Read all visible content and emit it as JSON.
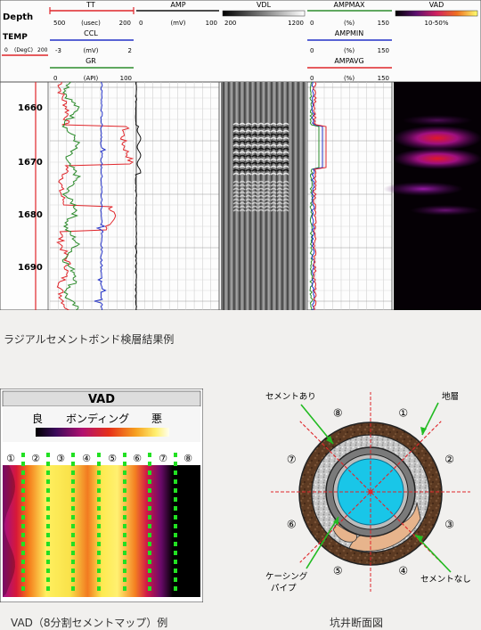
{
  "log": {
    "depth_label": "Depth",
    "temp_label": "TEMP",
    "temp_scale": [
      "0",
      "(DegC)",
      "200"
    ],
    "tt": {
      "label": "TT",
      "scale": [
        "500",
        "(usec)",
        "200"
      ]
    },
    "ccl": {
      "label": "CCL",
      "scale": [
        "-3",
        "(mV)",
        "2"
      ]
    },
    "gr": {
      "label": "GR",
      "scale": [
        "0",
        "(API)",
        "100"
      ]
    },
    "amp": {
      "label": "AMP",
      "scale": [
        "0",
        "(mV)",
        "100"
      ]
    },
    "vdl": {
      "label": "VDL",
      "scale": [
        "200",
        "1200"
      ]
    },
    "ampmax": {
      "label": "AMPMAX",
      "scale": [
        "0",
        "(%)",
        "150"
      ]
    },
    "ampmin": {
      "label": "AMPMIN",
      "scale": [
        "0",
        "(%)",
        "150"
      ]
    },
    "ampavg": {
      "label": "AMPAVG",
      "scale": [
        "0",
        "(%)",
        "150"
      ]
    },
    "vad": {
      "label": "VAD",
      "scale": "10-50%"
    },
    "depths": [
      "1660",
      "1670",
      "1680",
      "1690"
    ],
    "colors": {
      "temp": "#e0262b",
      "tt": "#e0262b",
      "ccl": "#2231c8",
      "gr": "#2c8c2c",
      "amp": "#111111"
    }
  },
  "caption_log": "ラジアルセメントボンド検層結果例",
  "vad_map": {
    "title": "VAD",
    "good": "良",
    "bonding": "ボンディング",
    "bad": "悪",
    "sectors": [
      "①",
      "②",
      "③",
      "④",
      "⑤",
      "⑥",
      "⑦",
      "⑧"
    ]
  },
  "caption_vad": "VAD（8分割セメントマップ）例",
  "borehole": {
    "cement_present": "セメントあり",
    "formation": "地層",
    "no_cement": "セメントなし",
    "casing_pipe_1": "ケーシング",
    "casing_pipe_2": "パイプ",
    "sectors": [
      "①",
      "②",
      "③",
      "④",
      "⑤",
      "⑥",
      "⑦",
      "⑧"
    ]
  },
  "caption_bore": "坑井断面図"
}
